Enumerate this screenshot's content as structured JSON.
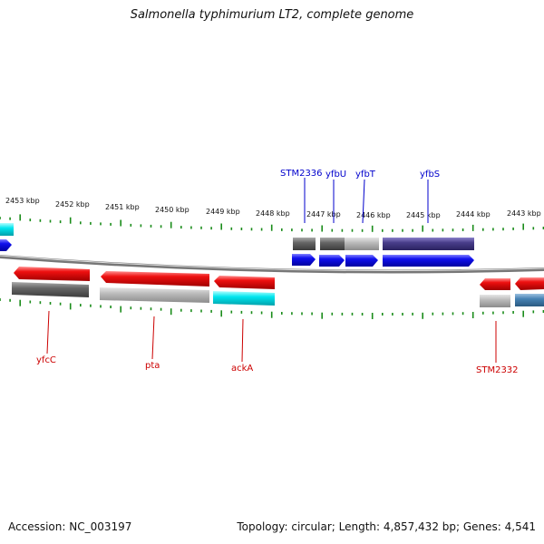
{
  "title": "Salmonella typhimurium LT2, complete genome",
  "footer": {
    "accession": "Accession: NC_003197",
    "topology": "Topology: circular; Length: 4,857,432 bp; Genes: 4,541"
  },
  "scale_labels": [
    "2453 kbp",
    "2452 kbp",
    "2451 kbp",
    "2450 kbp",
    "2449 kbp",
    "2448 kbp",
    "2447 kbp",
    "2446 kbp",
    "2445 kbp",
    "2444 kbp",
    "2443 kbp"
  ],
  "top_genes": [
    "STM2336",
    "yfbU",
    "yfbT",
    "yfbS"
  ],
  "bottom_genes": [
    "yfcC",
    "pta",
    "ackA",
    "STM2332"
  ],
  "colors": {
    "forward_gene": "#1010ee",
    "reverse_gene": "#ee1010",
    "forward_label": "#0000cc",
    "reverse_label": "#cc0000",
    "tick": "#1a8c1a",
    "backbone": "#888888",
    "cog_gray": "#666666",
    "cog_light": "#bbbbbb",
    "cog_cyan": "#00e5ee",
    "cog_purple": "#483d8b",
    "cog_steel": "#4682b4"
  }
}
